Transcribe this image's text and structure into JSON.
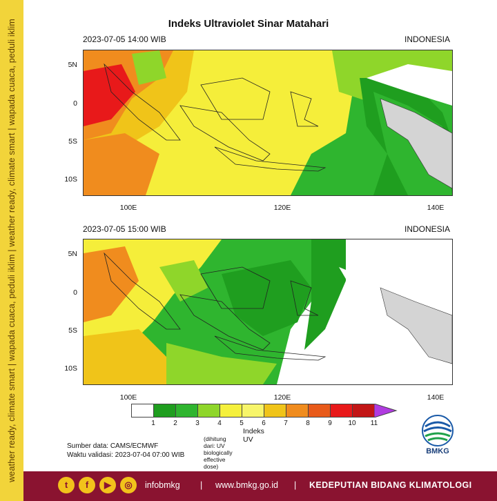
{
  "sidebar": {
    "slogan": "weather ready, climate smart | wapada cuaca, peduli iklim | weather ready, climate smart | wapada cuaca, peduli iklim"
  },
  "title": "Indeks Ultraviolet Sinar Matahari",
  "panels": [
    {
      "datetime": "2023-07-05  14:00 WIB",
      "region": "INDONESIA"
    },
    {
      "datetime": "2023-07-05  15:00 WIB",
      "region": "INDONESIA"
    }
  ],
  "axes": {
    "lat_labels": [
      "5N",
      "0",
      "5S",
      "10S"
    ],
    "lon_labels": [
      "100E",
      "120E",
      "140E"
    ]
  },
  "colorbar": {
    "title": "Indeks UV",
    "subtitle": "(dihitung dari: UV biologically effective dose)",
    "labels": [
      "1",
      "2",
      "3",
      "4",
      "5",
      "6",
      "7",
      "8",
      "9",
      "10",
      "11"
    ],
    "colors": [
      "#ffffff",
      "#1f9e1f",
      "#2fb52f",
      "#8fd62a",
      "#f5f03c",
      "#f7f56a",
      "#f0c419",
      "#f08c1e",
      "#e85a1a",
      "#e8191a",
      "#c21616",
      "#b03be0"
    ]
  },
  "source": {
    "data": "Sumber data: CAMS/ECMWF",
    "valid": "Waktu validasi: 2023-07-04 07:00 WIB"
  },
  "logo": {
    "text": "BMKG"
  },
  "footer": {
    "social_handle": "infobmkg",
    "sep1": "|",
    "website": "www.bmkg.go.id",
    "sep2": "|",
    "department": "KEDEPUTIAN BIDANG KLIMATOLOGI",
    "icons": [
      "twitter-icon",
      "facebook-icon",
      "youtube-icon",
      "instagram-icon"
    ]
  }
}
